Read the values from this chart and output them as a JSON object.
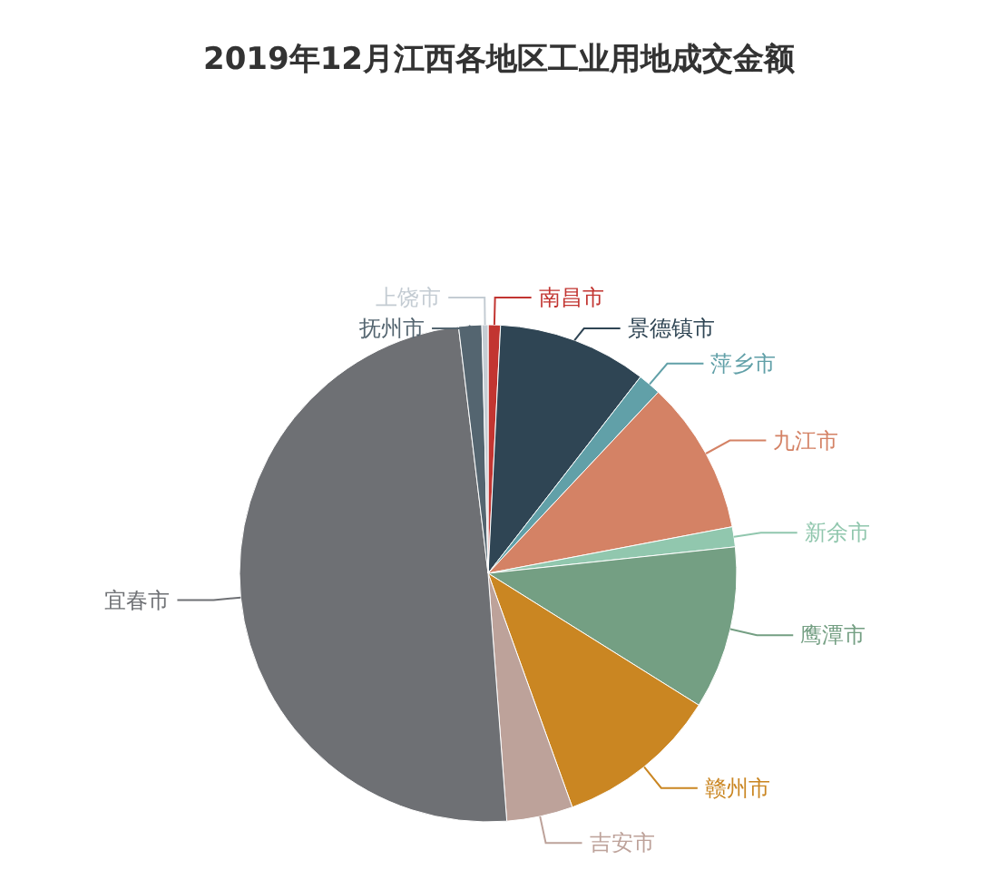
{
  "chart_data": {
    "type": "pie",
    "title": "2019年12月江西各地区工业用地成交金额",
    "categories": [
      "南昌市",
      "景德镇市",
      "萍乡市",
      "九江市",
      "新余市",
      "鹰潭市",
      "赣州市",
      "吉安市",
      "宜春市",
      "抚州市",
      "上饶市"
    ],
    "values": [
      0.8,
      9.7,
      1.5,
      10,
      1.3,
      10.6,
      10.6,
      4.3,
      49.3,
      1.5,
      0.4
    ],
    "colors": [
      "#c23531",
      "#2f4554",
      "#61a0a8",
      "#d48265",
      "#91c7ae",
      "#749f83",
      "#ca8622",
      "#bda29a",
      "#6e7074",
      "#546570",
      "#c4ccd3"
    ]
  }
}
